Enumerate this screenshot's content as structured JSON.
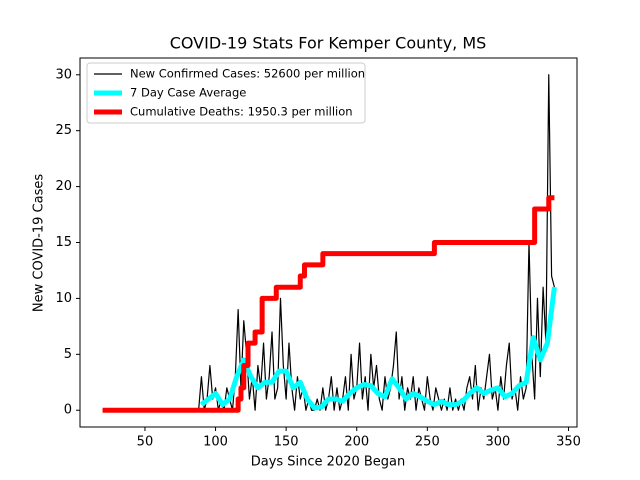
{
  "chart_data": {
    "type": "line",
    "title": "COVID-19 Stats For Kemper County, MS",
    "xlabel": "Days Since 2020 Began",
    "ylabel": "New COVID-19 Cases",
    "xlim": [
      4,
      356
    ],
    "ylim": [
      -1.5,
      31.5
    ],
    "xticks": [
      50,
      100,
      150,
      200,
      250,
      300,
      350
    ],
    "yticks": [
      0,
      5,
      10,
      15,
      20,
      25,
      30
    ],
    "legend": "upper left",
    "series": [
      {
        "name": "New Confirmed Cases: 52600 per million",
        "color": "#000000",
        "linewidth": 1.2,
        "x": [
          20,
          88,
          90,
          92,
          94,
          96,
          98,
          100,
          102,
          104,
          106,
          108,
          110,
          112,
          114,
          116,
          118,
          120,
          122,
          124,
          126,
          128,
          130,
          132,
          134,
          136,
          138,
          140,
          142,
          144,
          146,
          148,
          150,
          152,
          154,
          156,
          158,
          160,
          162,
          164,
          166,
          168,
          170,
          172,
          174,
          176,
          178,
          180,
          182,
          184,
          186,
          188,
          190,
          192,
          194,
          196,
          198,
          200,
          202,
          204,
          206,
          208,
          210,
          212,
          214,
          216,
          218,
          220,
          222,
          224,
          226,
          228,
          230,
          232,
          234,
          236,
          238,
          240,
          242,
          244,
          246,
          248,
          250,
          252,
          254,
          256,
          258,
          260,
          262,
          264,
          266,
          268,
          270,
          272,
          274,
          276,
          278,
          280,
          282,
          284,
          286,
          288,
          290,
          292,
          294,
          296,
          298,
          300,
          302,
          304,
          306,
          308,
          310,
          312,
          314,
          316,
          318,
          320,
          322,
          324,
          326,
          328,
          330,
          332,
          334,
          336,
          338,
          340
        ],
        "values": [
          0,
          0,
          3,
          0,
          1,
          4,
          1,
          2,
          0,
          1,
          0,
          2,
          1,
          0,
          3,
          9,
          2,
          8,
          5,
          1,
          3,
          0,
          4,
          2,
          6,
          1,
          3,
          7,
          1,
          2,
          10,
          4,
          1,
          6,
          2,
          0,
          3,
          1,
          2,
          0,
          1,
          0,
          0,
          1,
          0,
          2,
          0,
          1,
          3,
          0,
          2,
          0,
          1,
          3,
          0,
          5,
          1,
          2,
          6,
          1,
          3,
          0,
          5,
          2,
          4,
          1,
          0,
          3,
          1,
          2,
          4,
          7,
          1,
          3,
          0,
          2,
          1,
          3,
          0,
          2,
          1,
          0,
          3,
          1,
          0,
          2,
          1,
          0,
          1,
          0,
          2,
          0,
          1,
          0,
          1,
          0,
          2,
          3,
          1,
          4,
          0,
          2,
          1,
          3,
          5,
          1,
          2,
          0,
          3,
          1,
          4,
          6,
          1,
          2,
          0,
          3,
          1,
          2,
          15,
          5,
          1,
          10,
          3,
          11,
          6,
          30,
          12,
          11
        ]
      },
      {
        "name": "7 Day Case Average",
        "color": "#00ffff",
        "linewidth": 5,
        "x": [
          90,
          95,
          100,
          105,
          110,
          115,
          120,
          125,
          130,
          135,
          140,
          145,
          150,
          155,
          160,
          165,
          170,
          175,
          180,
          185,
          190,
          195,
          200,
          205,
          210,
          215,
          220,
          225,
          230,
          235,
          240,
          245,
          250,
          255,
          260,
          265,
          270,
          275,
          280,
          285,
          290,
          295,
          300,
          305,
          310,
          315,
          320,
          325,
          330,
          335,
          340
        ],
        "values": [
          0.5,
          1,
          1.5,
          0.5,
          1,
          3,
          4.5,
          3,
          2,
          2.5,
          2.5,
          3.5,
          3.5,
          2,
          2.5,
          1,
          0.2,
          0.3,
          1,
          1,
          0.8,
          1.5,
          2,
          2.3,
          2.2,
          1.5,
          1.2,
          2.8,
          2,
          1,
          1.5,
          1.2,
          0.8,
          0.5,
          0.8,
          0.5,
          0.5,
          0.8,
          1.5,
          2,
          1.5,
          1.8,
          2,
          1.2,
          1.5,
          2.2,
          2.5,
          6.5,
          4.5,
          6,
          11
        ]
      },
      {
        "name": "Cumulative Deaths: 1950.3 per million",
        "color": "#ff0000",
        "linewidth": 5,
        "x": [
          20,
          116,
          116,
          118,
          118,
          120,
          120,
          123,
          123,
          128,
          128,
          133,
          133,
          143,
          143,
          160,
          160,
          163,
          163,
          176,
          176,
          255,
          255,
          326,
          326,
          336,
          336,
          340
        ],
        "values": [
          0,
          0,
          1,
          1,
          2,
          2,
          4,
          4,
          6,
          6,
          7,
          7,
          10,
          10,
          11,
          11,
          12,
          12,
          13,
          13,
          14,
          14,
          15,
          15,
          18,
          18,
          19,
          19
        ]
      }
    ]
  }
}
